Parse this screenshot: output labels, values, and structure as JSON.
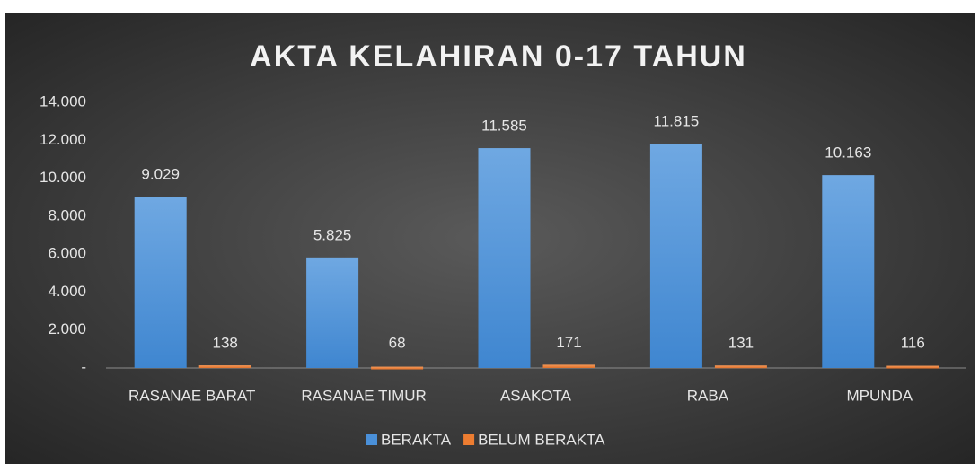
{
  "chart_data": {
    "type": "bar",
    "title": "AKTA KELAHIRAN 0-17 TAHUN",
    "categories": [
      "RASANAE BARAT",
      "RASANAE TIMUR",
      "ASAKOTA",
      "RABA",
      "MPUNDA"
    ],
    "series": [
      {
        "name": "BERAKTA",
        "color": "#4a90d9",
        "values": [
          9029,
          5825,
          11585,
          11815,
          10163
        ],
        "value_labels": [
          "9.029",
          "5.825",
          "11.585",
          "11.815",
          "10.163"
        ]
      },
      {
        "name": "BELUM BERAKTA",
        "color": "#ed7d31",
        "values": [
          138,
          68,
          171,
          131,
          116
        ]
      }
    ],
    "ylim": [
      0,
      14000
    ],
    "yticks": [
      {
        "value": 0,
        "label": "-"
      },
      {
        "value": 2000,
        "label": "2.000"
      },
      {
        "value": 4000,
        "label": "4.000"
      },
      {
        "value": 6000,
        "label": "6.000"
      },
      {
        "value": 8000,
        "label": "8.000"
      },
      {
        "value": 10000,
        "label": "10.000"
      },
      {
        "value": 12000,
        "label": "12.000"
      },
      {
        "value": 14000,
        "label": "14.000"
      }
    ],
    "grid": false,
    "legend": "bottom"
  }
}
